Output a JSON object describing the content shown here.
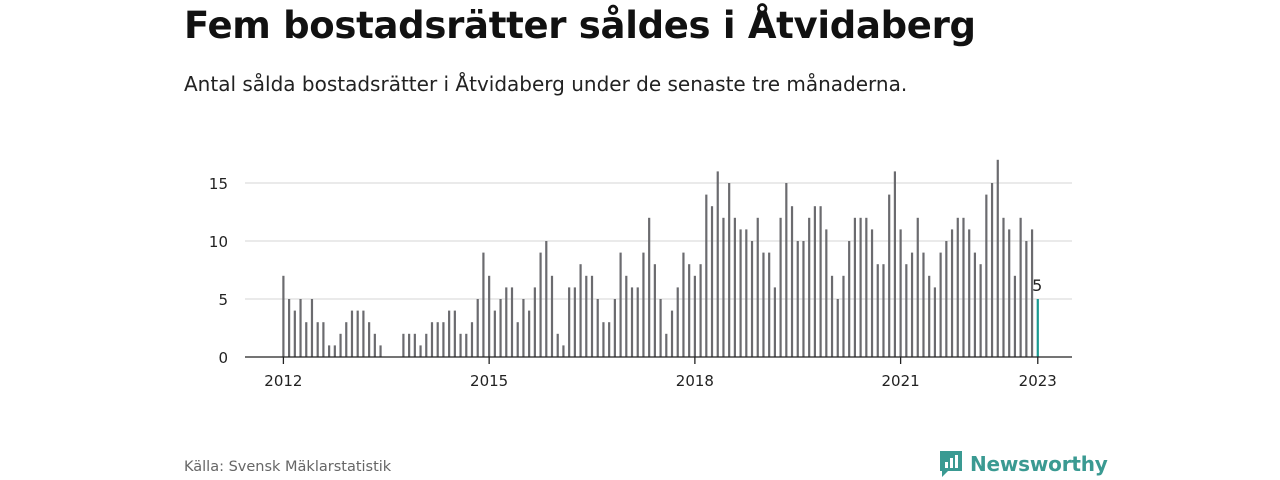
{
  "title": "Fem bostadsrätter såldes i Åtvidaberg",
  "subtitle": "Antal sålda bostadsrätter i Åtvidaberg under de senaste tre månaderna.",
  "source": "Källa: Svensk Mäklarstatistik",
  "brand": {
    "name": "Newsworthy",
    "icon": "newsworthy-logo-icon",
    "color": "#3a9a92"
  },
  "chart_data": {
    "type": "bar",
    "x_start": "2012-01",
    "frequency": "monthly",
    "x_ticks": [
      "2012",
      "2015",
      "2018",
      "2021",
      "2023"
    ],
    "y_ticks": [
      0,
      5,
      10,
      15
    ],
    "ylim": [
      0,
      17.5
    ],
    "grid": true,
    "bar_color": "#6b6b6f",
    "highlight_color": "#1a9a92",
    "highlight_label": "5",
    "values": [
      7,
      5,
      4,
      5,
      3,
      5,
      3,
      3,
      1,
      1,
      2,
      3,
      4,
      4,
      4,
      3,
      2,
      1,
      0,
      0,
      0,
      2,
      2,
      2,
      1,
      2,
      3,
      3,
      3,
      4,
      4,
      2,
      2,
      3,
      5,
      9,
      7,
      4,
      5,
      6,
      6,
      3,
      5,
      4,
      6,
      9,
      10,
      7,
      2,
      1,
      6,
      6,
      8,
      7,
      7,
      5,
      3,
      3,
      5,
      9,
      7,
      6,
      6,
      9,
      12,
      8,
      5,
      2,
      4,
      6,
      9,
      8,
      7,
      8,
      14,
      13,
      16,
      12,
      15,
      12,
      11,
      11,
      10,
      12,
      9,
      9,
      6,
      12,
      15,
      13,
      10,
      10,
      12,
      13,
      13,
      11,
      7,
      5,
      7,
      10,
      12,
      12,
      12,
      11,
      8,
      8,
      14,
      16,
      11,
      8,
      9,
      12,
      9,
      7,
      6,
      9,
      10,
      11,
      12,
      12,
      11,
      9,
      8,
      14,
      15,
      17,
      12,
      11,
      7,
      12,
      10,
      11,
      5
    ]
  }
}
